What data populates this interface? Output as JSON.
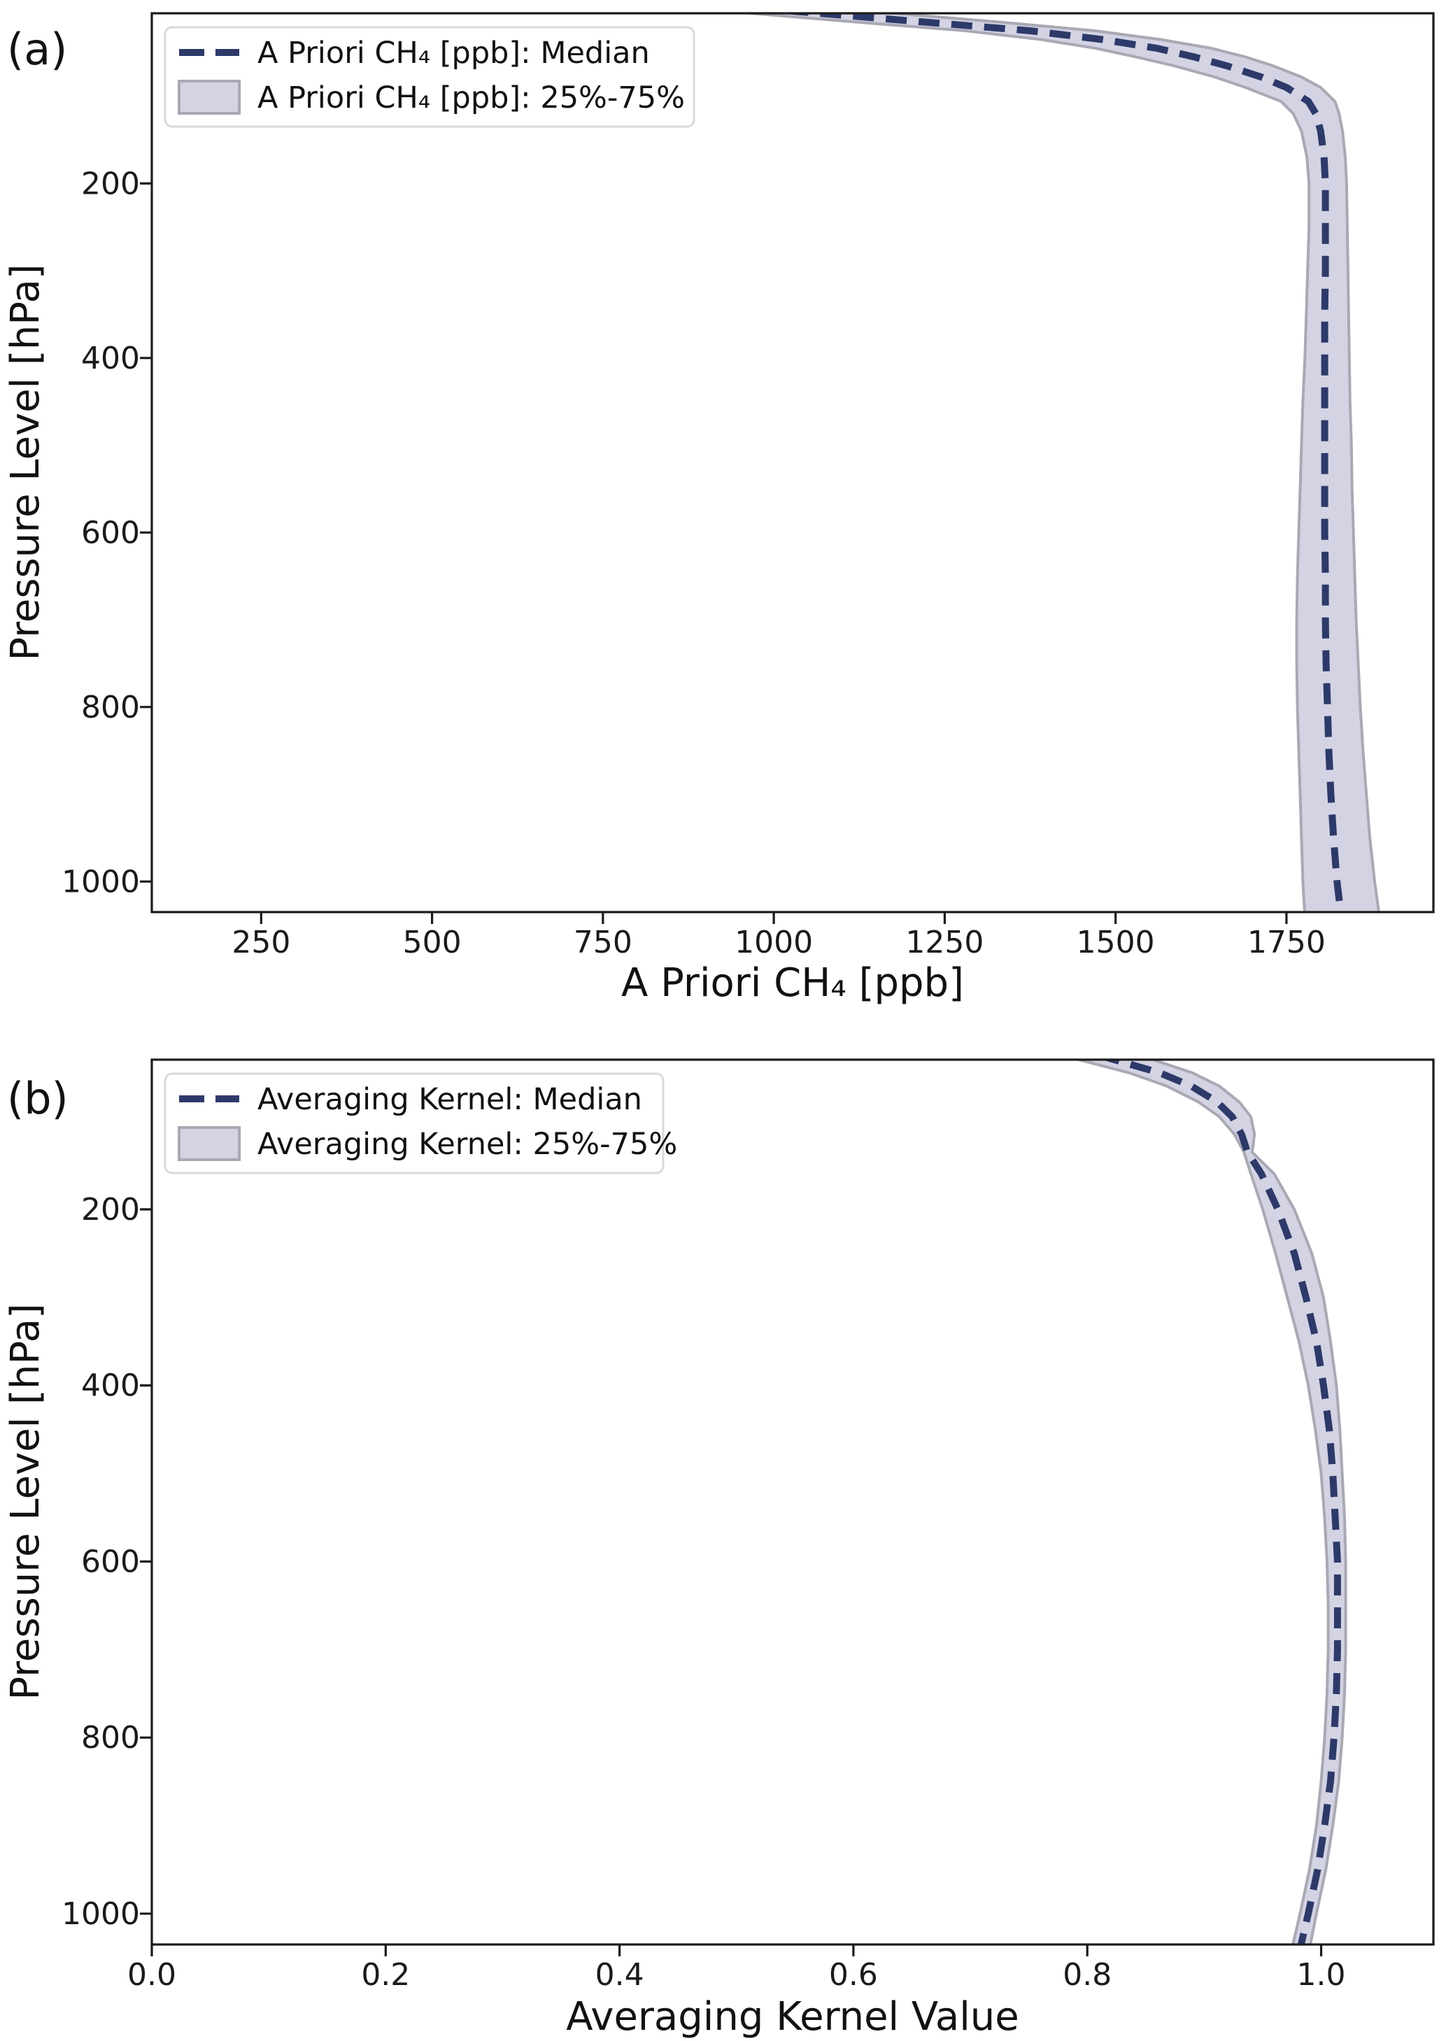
{
  "figure": {
    "background": "#ffffff",
    "panel_letters": [
      "(a)",
      "(b)"
    ]
  },
  "colors": {
    "median_line": "#2d3a69",
    "band_fill": "#d3d3e4",
    "band_edge": "#a9a9b4",
    "frame": "#1a1a1a",
    "legend_border": "#d9d9d9",
    "legend_bg": "#ffffff"
  },
  "chart_data": [
    {
      "panel": "(a)",
      "type": "line",
      "xlabel": "A Priori CH₄ [ppb]",
      "ylabel": "Pressure Level [hPa]",
      "xlim": [
        90,
        1965
      ],
      "ylim": {
        "top": 5,
        "bottom": 1035
      },
      "y_inverted": true,
      "grid": false,
      "xticks": [
        250,
        500,
        750,
        1000,
        1250,
        1500,
        1750
      ],
      "yticks": [
        200,
        400,
        600,
        800,
        1000
      ],
      "x_tick_decimals": 0,
      "legend": {
        "position": "upper left",
        "entries": [
          {
            "sample": "dash",
            "label": "A Priori CH₄ [ppb]: Median"
          },
          {
            "sample": "patch",
            "label": "A Priori CH₄ [ppb]: 25%-75%"
          }
        ]
      },
      "levels_hPa": [
        2,
        15,
        25,
        35,
        45,
        55,
        65,
        78,
        90,
        106,
        120,
        140,
        170,
        200,
        250,
        300,
        350,
        400,
        450,
        500,
        550,
        600,
        650,
        700,
        750,
        800,
        850,
        900,
        950,
        1000,
        1040
      ],
      "series": [
        {
          "name": "A Priori CH₄ [ppb]: Median",
          "style": "dashed",
          "values": [
            1020,
            1220,
            1375,
            1480,
            1560,
            1615,
            1662,
            1713,
            1750,
            1782,
            1793,
            1800,
            1805,
            1807,
            1807,
            1807,
            1806,
            1806,
            1806,
            1806,
            1806,
            1806,
            1807,
            1807,
            1808,
            1810,
            1812,
            1815,
            1819,
            1824,
            1830
          ]
        },
        {
          "name": "A Priori CH₄ [ppb]: 25%-75%",
          "style": "band",
          "q25": [
            920,
            1120,
            1280,
            1390,
            1470,
            1530,
            1585,
            1645,
            1690,
            1742,
            1760,
            1772,
            1780,
            1783,
            1783,
            1781,
            1779,
            1777,
            1774,
            1772,
            1770,
            1768,
            1766,
            1765,
            1765,
            1766,
            1768,
            1770,
            1772,
            1774,
            1777
          ],
          "q75": [
            1130,
            1330,
            1470,
            1565,
            1640,
            1690,
            1730,
            1772,
            1800,
            1821,
            1827,
            1832,
            1836,
            1838,
            1839,
            1840,
            1841,
            1842,
            1843,
            1845,
            1846,
            1848,
            1850,
            1852,
            1855,
            1858,
            1862,
            1867,
            1872,
            1879,
            1886
          ]
        }
      ]
    },
    {
      "panel": "(b)",
      "type": "line",
      "xlabel": "Averaging Kernel Value",
      "ylabel": "Pressure Level [hPa]",
      "xlim": [
        0.0,
        1.096
      ],
      "ylim": {
        "top": 30,
        "bottom": 1035
      },
      "y_inverted": true,
      "grid": false,
      "xticks": [
        0.0,
        0.2,
        0.4,
        0.6,
        0.8,
        1.0
      ],
      "yticks": [
        200,
        400,
        600,
        800,
        1000
      ],
      "x_tick_decimals": 1,
      "legend": {
        "position": "upper left",
        "entries": [
          {
            "sample": "dash",
            "label": "Averaging Kernel: Median"
          },
          {
            "sample": "patch",
            "label": "Averaging Kernel: 25%-75%"
          }
        ]
      },
      "levels_hPa": [
        25,
        45,
        60,
        78,
        95,
        115,
        135,
        160,
        200,
        250,
        300,
        350,
        400,
        450,
        500,
        550,
        600,
        650,
        700,
        750,
        800,
        850,
        900,
        950,
        1000,
        1040
      ],
      "series": [
        {
          "name": "Averaging Kernel: Median",
          "style": "dashed",
          "values": [
            0.81,
            0.862,
            0.889,
            0.911,
            0.924,
            0.932,
            0.937,
            0.949,
            0.963,
            0.977,
            0.987,
            0.996,
            1.002,
            1.007,
            1.01,
            1.012,
            1.014,
            1.014,
            1.014,
            1.013,
            1.011,
            1.008,
            1.003,
            0.997,
            0.989,
            0.982
          ]
        },
        {
          "name": "Averaging Kernel: 25%-75%",
          "style": "band",
          "q25": [
            0.778,
            0.836,
            0.868,
            0.895,
            0.913,
            0.926,
            0.934,
            0.94,
            0.95,
            0.961,
            0.971,
            0.981,
            0.989,
            0.995,
            1.0,
            1.003,
            1.005,
            1.006,
            1.006,
            1.005,
            1.003,
            1.0,
            0.996,
            0.99,
            0.982,
            0.975
          ],
          "q75": [
            0.845,
            0.89,
            0.913,
            0.93,
            0.94,
            0.943,
            0.941,
            0.96,
            0.977,
            0.992,
            1.002,
            1.008,
            1.013,
            1.016,
            1.018,
            1.02,
            1.021,
            1.021,
            1.021,
            1.02,
            1.018,
            1.015,
            1.01,
            1.004,
            0.996,
            0.99
          ]
        }
      ]
    }
  ]
}
